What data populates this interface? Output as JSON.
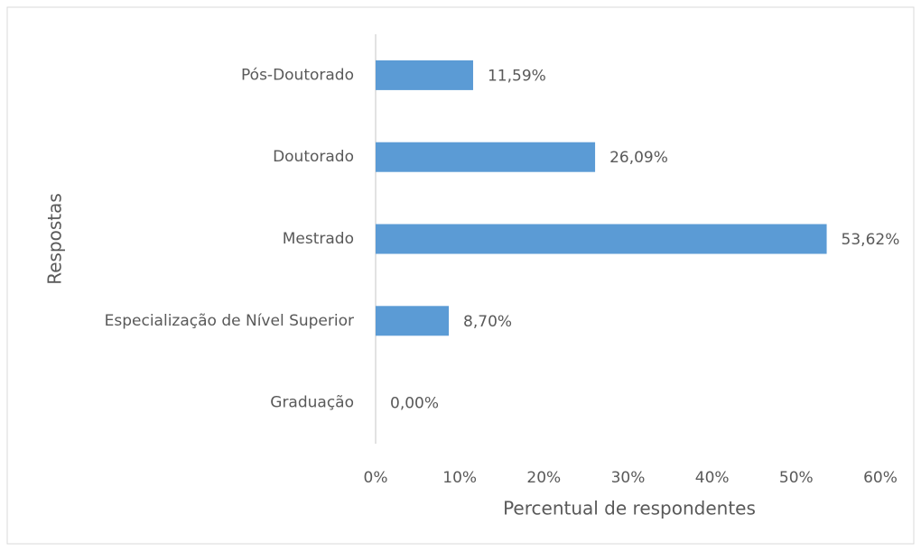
{
  "chart_data": {
    "type": "bar",
    "orientation": "horizontal",
    "x_label": "Percentual de respondentes",
    "y_label": "Respostas",
    "categories": [
      "Pós-Doutorado",
      "Doutorado",
      "Mestrado",
      "Especialização de Nível Superior",
      "Graduação"
    ],
    "values": [
      11.59,
      26.09,
      53.62,
      8.7,
      0.0
    ],
    "value_labels": [
      "11,59%",
      "26,09%",
      "53,62%",
      "8,70%",
      "0,00%"
    ],
    "color": "#5b9bd5",
    "xlim": [
      0,
      60
    ],
    "xticks": [
      {
        "value": 0,
        "label": "0%"
      },
      {
        "value": 10,
        "label": "10%"
      },
      {
        "value": 20,
        "label": "20%"
      },
      {
        "value": 30,
        "label": "30%"
      },
      {
        "value": 40,
        "label": "40%"
      },
      {
        "value": 50,
        "label": "50%"
      },
      {
        "value": 60,
        "label": "60%"
      }
    ],
    "grid": false
  }
}
